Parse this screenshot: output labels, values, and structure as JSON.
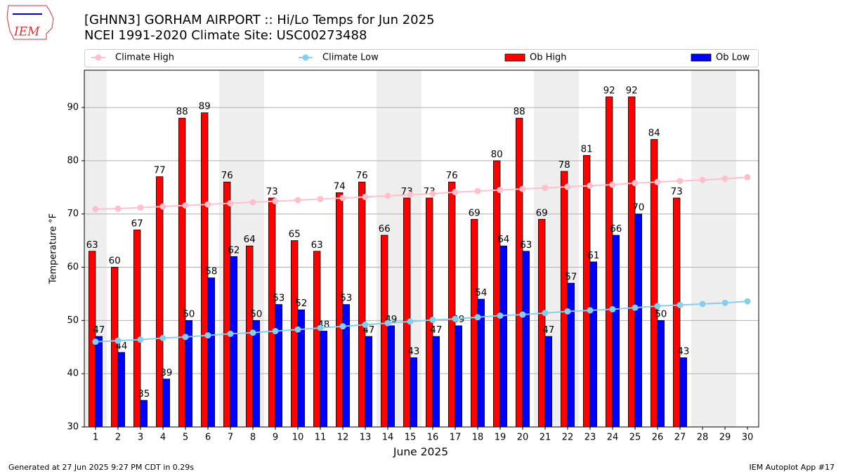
{
  "chart_data": {
    "type": "bar",
    "title": "[GHNN3] GORHAM AIRPORT :: Hi/Lo Temps for Jun 2025",
    "subtitle": "NCEI 1991-2020 Climate Site: USC00273488",
    "x_label": "June 2025",
    "y_label": "Temperature °F",
    "logo_text": "IEM",
    "footer_left": "Generated at 27 Jun 2025 9:27 PM CDT in 0.29s",
    "footer_right": "IEM Autoplot App #17",
    "x": [
      1,
      2,
      3,
      4,
      5,
      6,
      7,
      8,
      9,
      10,
      11,
      12,
      13,
      14,
      15,
      16,
      17,
      18,
      19,
      20,
      21,
      22,
      23,
      24,
      25,
      26,
      27,
      28,
      29,
      30
    ],
    "xlim": [
      0.5,
      30.5
    ],
    "xticks": [
      1,
      2,
      3,
      4,
      5,
      6,
      7,
      8,
      9,
      10,
      11,
      12,
      13,
      14,
      15,
      16,
      17,
      18,
      19,
      20,
      21,
      22,
      23,
      24,
      25,
      26,
      27,
      28,
      29,
      30
    ],
    "ylim": [
      30,
      97
    ],
    "yticks": [
      30,
      40,
      50,
      60,
      70,
      80,
      90
    ],
    "grid": true,
    "shaded_x": [
      1,
      7,
      8,
      14,
      15,
      21,
      22,
      28,
      29
    ],
    "series": [
      {
        "name": "Climate High",
        "type": "line",
        "color": "#ffc0cb",
        "values": [
          70.9,
          71.0,
          71.2,
          71.4,
          71.6,
          71.8,
          72.0,
          72.2,
          72.4,
          72.6,
          72.8,
          73.0,
          73.2,
          73.4,
          73.6,
          73.8,
          74.1,
          74.3,
          74.5,
          74.7,
          74.9,
          75.1,
          75.3,
          75.5,
          75.8,
          76.0,
          76.2,
          76.4,
          76.6,
          76.9
        ]
      },
      {
        "name": "Climate Low",
        "type": "line",
        "color": "#87ceeb",
        "values": [
          46.0,
          46.2,
          46.4,
          46.7,
          46.9,
          47.2,
          47.5,
          47.7,
          48.0,
          48.3,
          48.6,
          48.9,
          49.2,
          49.5,
          49.8,
          50.1,
          50.3,
          50.6,
          50.9,
          51.1,
          51.4,
          51.7,
          51.9,
          52.1,
          52.4,
          52.7,
          52.9,
          53.1,
          53.3,
          53.6
        ]
      },
      {
        "name": "Ob High",
        "type": "bar",
        "color": "#ff0000",
        "values": [
          63,
          60,
          67,
          77,
          88,
          89,
          76,
          64,
          73,
          65,
          63,
          74,
          76,
          66,
          73,
          73,
          76,
          69,
          80,
          88,
          69,
          78,
          81,
          92,
          92,
          84,
          73,
          null,
          null,
          null
        ]
      },
      {
        "name": "Ob Low",
        "type": "bar",
        "color": "#0000ff",
        "values": [
          47,
          44,
          35,
          39,
          50,
          58,
          62,
          50,
          53,
          52,
          48,
          53,
          47,
          49,
          43,
          47,
          49,
          54,
          64,
          63,
          47,
          57,
          61,
          66,
          70,
          50,
          43,
          null,
          null,
          null
        ]
      }
    ]
  }
}
